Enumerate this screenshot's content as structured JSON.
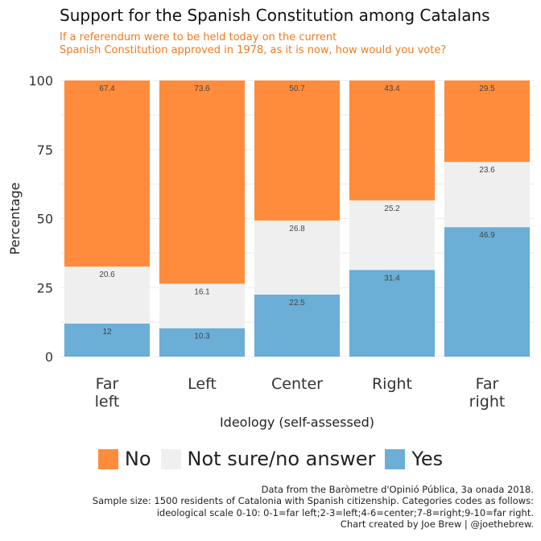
{
  "title": "Support for the Spanish Constitution among Catalans",
  "subtitle": [
    "If a referendum were to be held today on the current",
    "Spanish Constitution approved in 1978, as it is now, how would you vote?"
  ],
  "caption": [
    "Data from the Baròmetre d'Opinió Pública, 3a onada 2018.",
    "Sample size: 1500 residents of Catalonia with Spanish citizenship. Categories codes as follows:",
    "ideological scale 0-10: 0-1=far left;2-3=left;4-6=center;7-8=right;9-10=far right.",
    "Chart created by Joe Brew | @joethebrew."
  ],
  "legend": [
    {
      "label": "No",
      "color": "#ff8c3c"
    },
    {
      "label": "Not sure/no answer",
      "color": "#efefef"
    },
    {
      "label": "Yes",
      "color": "#6baed6"
    }
  ],
  "chart_data": {
    "type": "bar",
    "stacked": true,
    "categories": [
      [
        "Far",
        "left"
      ],
      [
        "Left"
      ],
      [
        "Center"
      ],
      [
        "Right"
      ],
      [
        "Far",
        "right"
      ]
    ],
    "series": [
      {
        "name": "Yes",
        "color": "#6baed6",
        "values": [
          12,
          10.3,
          22.5,
          31.4,
          46.9
        ]
      },
      {
        "name": "Not sure/no answer",
        "color": "#efefef",
        "values": [
          20.6,
          16.1,
          26.8,
          25.2,
          23.6
        ]
      },
      {
        "name": "No",
        "color": "#ff8c3c",
        "values": [
          67.4,
          73.6,
          50.7,
          43.4,
          29.5
        ]
      }
    ],
    "xlabel": "Ideology (self-assessed)",
    "ylabel": "Percentage",
    "ylim": [
      0,
      100
    ],
    "yticks": [
      0,
      25,
      50,
      75,
      100
    ],
    "grid": true,
    "legend_position": "bottom"
  }
}
